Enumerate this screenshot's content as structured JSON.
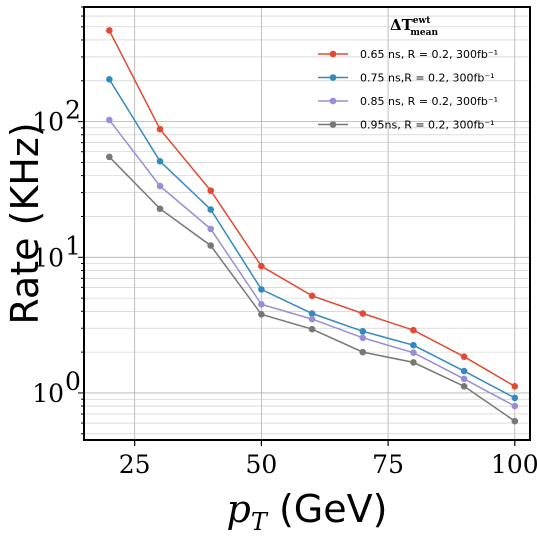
{
  "chart_data": {
    "type": "line",
    "x": [
      20,
      30,
      40,
      50,
      60,
      70,
      80,
      90,
      100
    ],
    "xlabel": "p_T (GeV)",
    "xlabel_var": "p",
    "xlabel_sub": "T",
    "xlabel_rest": " (GeV)",
    "ylabel": "Rate (KHz)",
    "xlim": [
      15,
      103
    ],
    "ylim": [
      0.45,
      700
    ],
    "yscale": "log",
    "xticks": [
      25,
      50,
      75,
      100
    ],
    "xtick_labels": [
      "25",
      "50",
      "75",
      "100"
    ],
    "yticks": [
      1,
      10,
      100
    ],
    "ytick_labels": [
      "10",
      "10",
      "10"
    ],
    "ytick_exps": [
      "0",
      "1",
      "2"
    ],
    "grid": true,
    "legend": {
      "placement": "top-right",
      "title": "ΔT",
      "title_sup": "ewt",
      "title_sub": "mean"
    },
    "series": [
      {
        "name": "0.65 ns, R = 0.2, 300fb⁻¹",
        "color": "#e24a33",
        "values": [
          470,
          88,
          31,
          8.6,
          5.2,
          3.85,
          2.9,
          1.85,
          1.12
        ]
      },
      {
        "name": "0.75 ns,R = 0.2, 300fb⁻¹",
        "color": "#348abd",
        "values": [
          205,
          51,
          22.5,
          5.8,
          3.85,
          2.85,
          2.25,
          1.45,
          0.92
        ]
      },
      {
        "name": "0.85 ns, R = 0.2, 300fb⁻¹",
        "color": "#988ed5",
        "values": [
          103,
          33.5,
          16.2,
          4.5,
          3.5,
          2.55,
          1.98,
          1.27,
          0.8
        ]
      },
      {
        "name": "0.95ns, R = 0.2, 300fb⁻¹",
        "color": "#777777",
        "values": [
          55,
          22.8,
          12.2,
          3.8,
          2.95,
          2.0,
          1.68,
          1.12,
          0.62
        ]
      }
    ]
  }
}
